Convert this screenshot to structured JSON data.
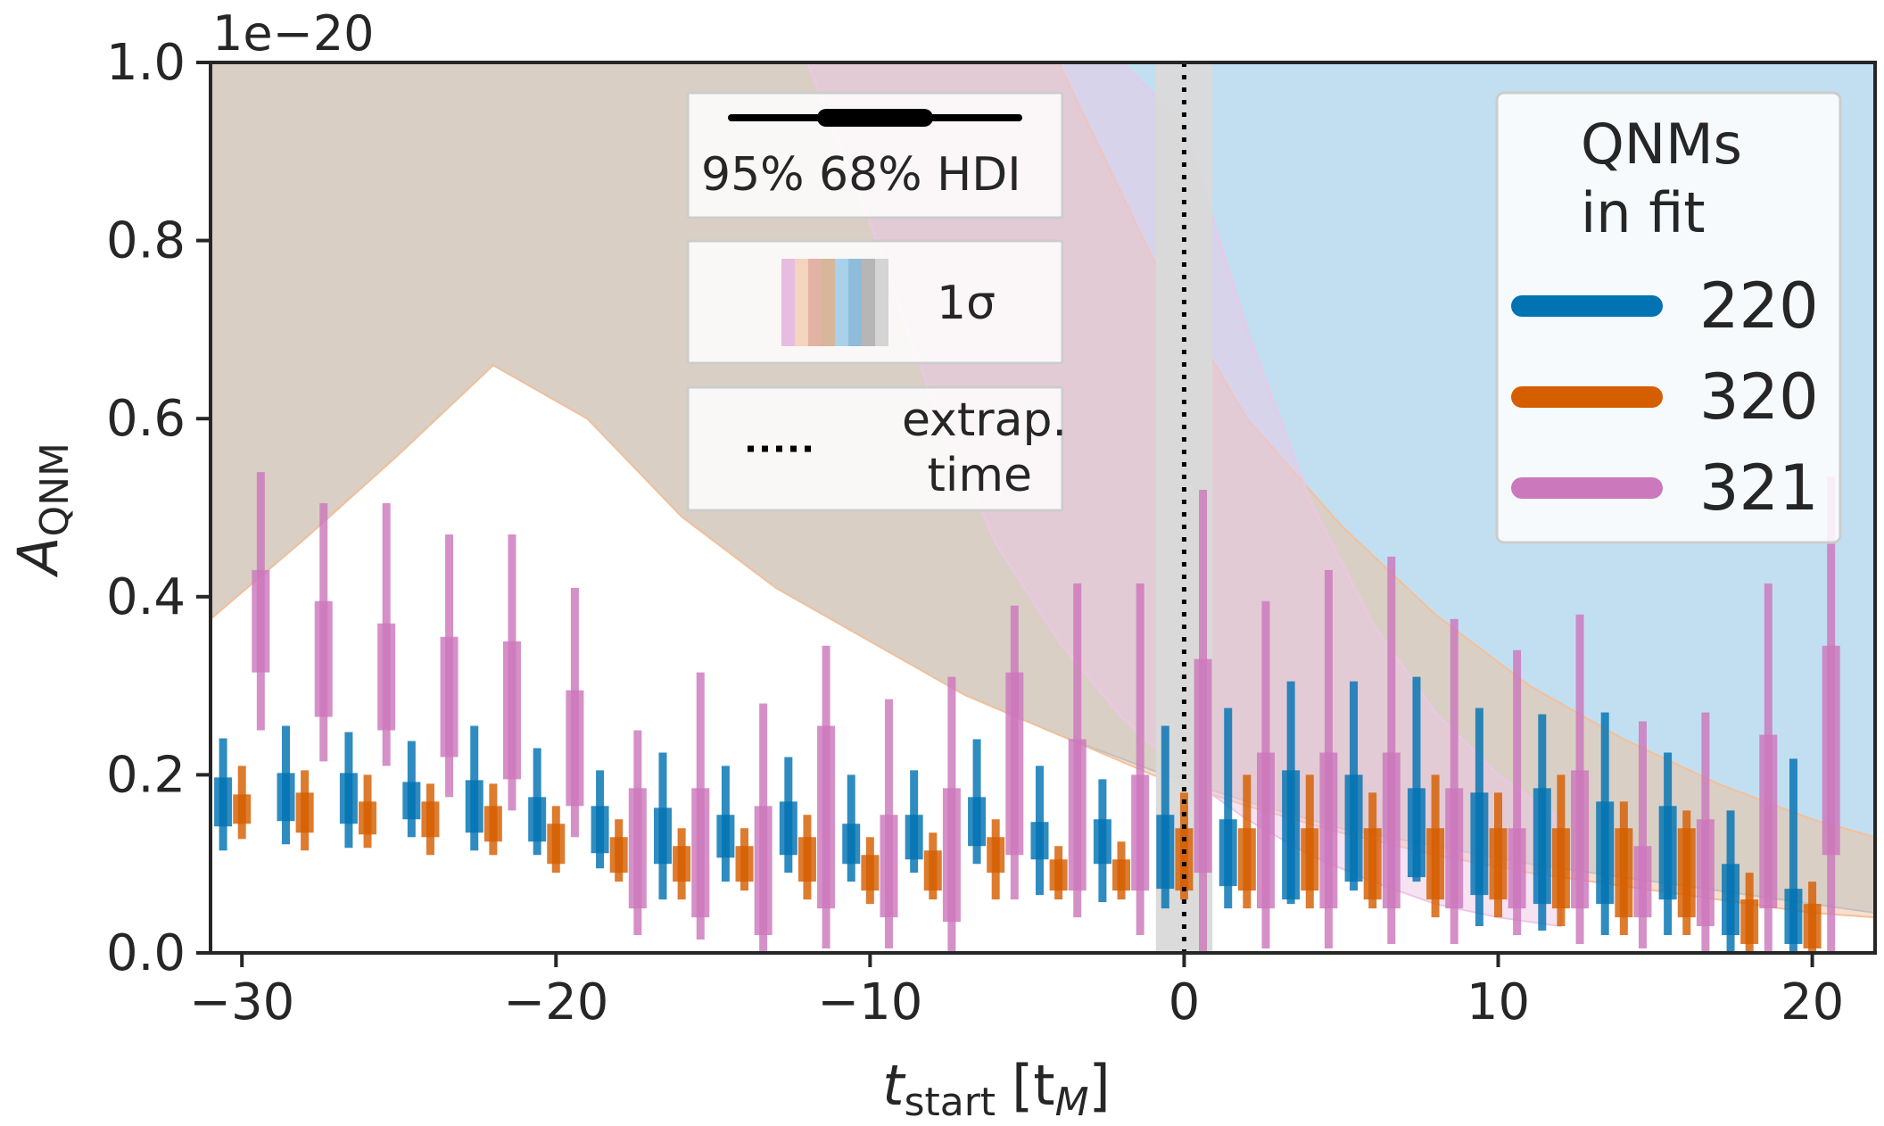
{
  "chart_data": {
    "type": "error-bar",
    "scale_label": "1e−20",
    "xlabel": {
      "main": "t",
      "sub": "start",
      "unit": "[t",
      "unit_sub": "M",
      "unit_close": "]"
    },
    "ylabel": {
      "main": "A",
      "sub": "QNM"
    },
    "xlim": [
      -31,
      22
    ],
    "ylim": [
      0,
      1.0
    ],
    "x_ticks": [
      {
        "value": -30,
        "label": "−30"
      },
      {
        "value": -20,
        "label": "−20"
      },
      {
        "value": -10,
        "label": "−10"
      },
      {
        "value": 0,
        "label": "0"
      },
      {
        "value": 10,
        "label": "10"
      },
      {
        "value": 20,
        "label": "20"
      }
    ],
    "y_ticks": [
      {
        "value": 0.0,
        "label": "0.0"
      },
      {
        "value": 0.2,
        "label": "0.2"
      },
      {
        "value": 0.4,
        "label": "0.4"
      },
      {
        "value": 0.6,
        "label": "0.6"
      },
      {
        "value": 0.8,
        "label": "0.8"
      },
      {
        "value": 1.0,
        "label": "1.0"
      }
    ],
    "extrap_time": 0,
    "extrap_band": [
      -0.9,
      0.9
    ],
    "legend_title": [
      "QNMs",
      "in fit"
    ],
    "legend_position": "top-right",
    "series": [
      {
        "name": "220",
        "color": "#0173b2",
        "band_color": "#8fc4e6",
        "x_offset": -0.6,
        "points": [
          {
            "x": -30,
            "lo95": 0.115,
            "lo68": 0.142,
            "med": 0.175,
            "hi68": 0.197,
            "hi95": 0.241
          },
          {
            "x": -28,
            "lo95": 0.122,
            "lo68": 0.148,
            "med": 0.178,
            "hi68": 0.202,
            "hi95": 0.255
          },
          {
            "x": -26,
            "lo95": 0.118,
            "lo68": 0.145,
            "med": 0.175,
            "hi68": 0.202,
            "hi95": 0.248
          },
          {
            "x": -24,
            "lo95": 0.13,
            "lo68": 0.15,
            "med": 0.17,
            "hi68": 0.192,
            "hi95": 0.238
          },
          {
            "x": -22,
            "lo95": 0.115,
            "lo68": 0.135,
            "med": 0.165,
            "hi68": 0.194,
            "hi95": 0.255
          },
          {
            "x": -20,
            "lo95": 0.11,
            "lo68": 0.125,
            "med": 0.15,
            "hi68": 0.175,
            "hi95": 0.23
          },
          {
            "x": -18,
            "lo95": 0.095,
            "lo68": 0.112,
            "med": 0.14,
            "hi68": 0.165,
            "hi95": 0.205
          },
          {
            "x": -16,
            "lo95": 0.06,
            "lo68": 0.1,
            "med": 0.135,
            "hi68": 0.163,
            "hi95": 0.225
          },
          {
            "x": -14,
            "lo95": 0.08,
            "lo68": 0.107,
            "med": 0.135,
            "hi68": 0.155,
            "hi95": 0.21
          },
          {
            "x": -12,
            "lo95": 0.09,
            "lo68": 0.11,
            "med": 0.14,
            "hi68": 0.17,
            "hi95": 0.22
          },
          {
            "x": -10,
            "lo95": 0.08,
            "lo68": 0.1,
            "med": 0.12,
            "hi68": 0.145,
            "hi95": 0.2
          },
          {
            "x": -8,
            "lo95": 0.09,
            "lo68": 0.105,
            "med": 0.13,
            "hi68": 0.155,
            "hi95": 0.205
          },
          {
            "x": -6,
            "lo95": 0.1,
            "lo68": 0.12,
            "med": 0.15,
            "hi68": 0.175,
            "hi95": 0.24
          },
          {
            "x": -4,
            "lo95": 0.065,
            "lo68": 0.105,
            "med": 0.125,
            "hi68": 0.147,
            "hi95": 0.21
          },
          {
            "x": -2,
            "lo95": 0.057,
            "lo68": 0.1,
            "med": 0.13,
            "hi68": 0.15,
            "hi95": 0.195
          },
          {
            "x": 0,
            "lo95": 0.05,
            "lo68": 0.072,
            "med": 0.12,
            "hi68": 0.155,
            "hi95": 0.255
          },
          {
            "x": 2,
            "lo95": 0.05,
            "lo68": 0.075,
            "med": 0.11,
            "hi68": 0.15,
            "hi95": 0.275
          },
          {
            "x": 4,
            "lo95": 0.055,
            "lo68": 0.06,
            "med": 0.11,
            "hi68": 0.205,
            "hi95": 0.305
          },
          {
            "x": 6,
            "lo95": 0.07,
            "lo68": 0.08,
            "med": 0.15,
            "hi68": 0.2,
            "hi95": 0.305
          },
          {
            "x": 8,
            "lo95": 0.08,
            "lo68": 0.085,
            "med": 0.13,
            "hi68": 0.185,
            "hi95": 0.31
          },
          {
            "x": 10,
            "lo95": 0.03,
            "lo68": 0.065,
            "med": 0.12,
            "hi68": 0.18,
            "hi95": 0.275
          },
          {
            "x": 12,
            "lo95": 0.025,
            "lo68": 0.055,
            "med": 0.1,
            "hi68": 0.185,
            "hi95": 0.268
          },
          {
            "x": 14,
            "lo95": 0.02,
            "lo68": 0.055,
            "med": 0.11,
            "hi68": 0.17,
            "hi95": 0.27
          },
          {
            "x": 16,
            "lo95": 0.02,
            "lo68": 0.06,
            "med": 0.11,
            "hi68": 0.165,
            "hi95": 0.225
          },
          {
            "x": 18,
            "lo95": 0.0,
            "lo68": 0.02,
            "med": 0.05,
            "hi68": 0.1,
            "hi95": 0.16
          },
          {
            "x": 20,
            "lo95": 0.0,
            "lo68": 0.01,
            "med": 0.04,
            "hi68": 0.072,
            "hi95": 0.218
          }
        ],
        "band": {
          "x": [
            -31,
            -28,
            -25,
            -22,
            -19,
            -16,
            -13,
            -10,
            -7,
            -4,
            -1,
            2,
            5,
            8,
            11,
            14,
            17,
            20,
            22
          ],
          "lo": [
            0.375,
            0.465,
            0.56,
            0.66,
            0.6,
            0.49,
            0.41,
            0.35,
            0.29,
            0.245,
            0.205,
            0.17,
            0.14,
            0.12,
            0.1,
            0.085,
            0.07,
            0.055,
            0.045
          ],
          "hi": [
            1.0,
            1.0,
            1.0,
            1.0,
            1.0,
            1.0,
            1.0,
            1.0,
            1.0,
            1.0,
            1.0,
            1.0,
            1.0,
            1.0,
            1.0,
            1.0,
            1.0,
            1.0,
            1.0
          ]
        }
      },
      {
        "name": "320",
        "color": "#d55e00",
        "band_color": "#f2c09a",
        "x_offset": 0.0,
        "points": [
          {
            "x": -30,
            "lo95": 0.128,
            "lo68": 0.145,
            "med": 0.16,
            "hi68": 0.178,
            "hi95": 0.21
          },
          {
            "x": -28,
            "lo95": 0.115,
            "lo68": 0.135,
            "med": 0.155,
            "hi68": 0.18,
            "hi95": 0.205
          },
          {
            "x": -26,
            "lo95": 0.118,
            "lo68": 0.133,
            "med": 0.15,
            "hi68": 0.17,
            "hi95": 0.2
          },
          {
            "x": -24,
            "lo95": 0.11,
            "lo68": 0.13,
            "med": 0.15,
            "hi68": 0.17,
            "hi95": 0.19
          },
          {
            "x": -22,
            "lo95": 0.11,
            "lo68": 0.125,
            "med": 0.145,
            "hi68": 0.165,
            "hi95": 0.19
          },
          {
            "x": -20,
            "lo95": 0.09,
            "lo68": 0.1,
            "med": 0.12,
            "hi68": 0.145,
            "hi95": 0.165
          },
          {
            "x": -18,
            "lo95": 0.08,
            "lo68": 0.09,
            "med": 0.11,
            "hi68": 0.13,
            "hi95": 0.15
          },
          {
            "x": -16,
            "lo95": 0.06,
            "lo68": 0.08,
            "med": 0.1,
            "hi68": 0.12,
            "hi95": 0.14
          },
          {
            "x": -14,
            "lo95": 0.07,
            "lo68": 0.08,
            "med": 0.1,
            "hi68": 0.12,
            "hi95": 0.14
          },
          {
            "x": -12,
            "lo95": 0.06,
            "lo68": 0.08,
            "med": 0.105,
            "hi68": 0.13,
            "hi95": 0.155
          },
          {
            "x": -10,
            "lo95": 0.055,
            "lo68": 0.07,
            "med": 0.09,
            "hi68": 0.11,
            "hi95": 0.13
          },
          {
            "x": -8,
            "lo95": 0.06,
            "lo68": 0.07,
            "med": 0.095,
            "hi68": 0.115,
            "hi95": 0.135
          },
          {
            "x": -6,
            "lo95": 0.06,
            "lo68": 0.09,
            "med": 0.11,
            "hi68": 0.13,
            "hi95": 0.15
          },
          {
            "x": -4,
            "lo95": 0.06,
            "lo68": 0.07,
            "med": 0.09,
            "hi68": 0.105,
            "hi95": 0.12
          },
          {
            "x": -2,
            "lo95": 0.06,
            "lo68": 0.07,
            "med": 0.09,
            "hi68": 0.105,
            "hi95": 0.125
          },
          {
            "x": 0,
            "lo95": 0.06,
            "lo68": 0.07,
            "med": 0.1,
            "hi68": 0.14,
            "hi95": 0.18
          },
          {
            "x": 2,
            "lo95": 0.05,
            "lo68": 0.07,
            "med": 0.1,
            "hi68": 0.14,
            "hi95": 0.2
          },
          {
            "x": 4,
            "lo95": 0.05,
            "lo68": 0.07,
            "med": 0.1,
            "hi68": 0.14,
            "hi95": 0.2
          },
          {
            "x": 6,
            "lo95": 0.05,
            "lo68": 0.06,
            "med": 0.1,
            "hi68": 0.14,
            "hi95": 0.18
          },
          {
            "x": 8,
            "lo95": 0.04,
            "lo68": 0.06,
            "med": 0.1,
            "hi68": 0.14,
            "hi95": 0.2
          },
          {
            "x": 10,
            "lo95": 0.04,
            "lo68": 0.06,
            "med": 0.1,
            "hi68": 0.14,
            "hi95": 0.18
          },
          {
            "x": 12,
            "lo95": 0.03,
            "lo68": 0.05,
            "med": 0.1,
            "hi68": 0.14,
            "hi95": 0.2
          },
          {
            "x": 14,
            "lo95": 0.02,
            "lo68": 0.04,
            "med": 0.09,
            "hi68": 0.14,
            "hi95": 0.17
          },
          {
            "x": 16,
            "lo95": 0.02,
            "lo68": 0.04,
            "med": 0.09,
            "hi68": 0.14,
            "hi95": 0.16
          },
          {
            "x": 18,
            "lo95": 0.0,
            "lo68": 0.01,
            "med": 0.03,
            "hi68": 0.06,
            "hi95": 0.09
          },
          {
            "x": 20,
            "lo95": 0.0,
            "lo68": 0.005,
            "med": 0.03,
            "hi68": 0.055,
            "hi95": 0.08
          }
        ],
        "band": {
          "x": [
            -31,
            -28,
            -25,
            -22,
            -19,
            -16,
            -13,
            -10,
            -7,
            -4,
            -1,
            2,
            5,
            8,
            11,
            14,
            17,
            20,
            22
          ],
          "lo": [
            0.375,
            0.465,
            0.56,
            0.66,
            0.6,
            0.49,
            0.41,
            0.35,
            0.29,
            0.245,
            0.2,
            0.165,
            0.135,
            0.11,
            0.09,
            0.075,
            0.06,
            0.045,
            0.04
          ],
          "hi": [
            1.0,
            1.0,
            1.0,
            1.0,
            1.0,
            1.0,
            1.0,
            1.0,
            1.0,
            1.0,
            0.78,
            0.6,
            0.48,
            0.38,
            0.3,
            0.24,
            0.19,
            0.15,
            0.13
          ]
        }
      },
      {
        "name": "321",
        "color": "#cc78bc",
        "band_color": "#ecc7e6",
        "x_offset": 0.6,
        "points": [
          {
            "x": -30,
            "lo95": 0.25,
            "lo68": 0.315,
            "med": 0.37,
            "hi68": 0.43,
            "hi95": 0.54
          },
          {
            "x": -28,
            "lo95": 0.215,
            "lo68": 0.265,
            "med": 0.33,
            "hi68": 0.395,
            "hi95": 0.505
          },
          {
            "x": -26,
            "lo95": 0.21,
            "lo68": 0.25,
            "med": 0.31,
            "hi68": 0.37,
            "hi95": 0.505
          },
          {
            "x": -24,
            "lo95": 0.175,
            "lo68": 0.22,
            "med": 0.28,
            "hi68": 0.355,
            "hi95": 0.47
          },
          {
            "x": -22,
            "lo95": 0.16,
            "lo68": 0.195,
            "med": 0.27,
            "hi68": 0.35,
            "hi95": 0.47
          },
          {
            "x": -20,
            "lo95": 0.13,
            "lo68": 0.165,
            "med": 0.23,
            "hi68": 0.295,
            "hi95": 0.41
          },
          {
            "x": -18,
            "lo95": 0.02,
            "lo68": 0.05,
            "med": 0.11,
            "hi68": 0.185,
            "hi95": 0.25
          },
          {
            "x": -16,
            "lo95": 0.015,
            "lo68": 0.04,
            "med": 0.11,
            "hi68": 0.185,
            "hi95": 0.315
          },
          {
            "x": -14,
            "lo95": 0.0,
            "lo68": 0.02,
            "med": 0.08,
            "hi68": 0.165,
            "hi95": 0.28
          },
          {
            "x": -12,
            "lo95": 0.005,
            "lo68": 0.05,
            "med": 0.14,
            "hi68": 0.255,
            "hi95": 0.345
          },
          {
            "x": -10,
            "lo95": 0.005,
            "lo68": 0.04,
            "med": 0.09,
            "hi68": 0.155,
            "hi95": 0.285
          },
          {
            "x": -8,
            "lo95": 0.0,
            "lo68": 0.035,
            "med": 0.12,
            "hi68": 0.185,
            "hi95": 0.31
          },
          {
            "x": -6,
            "lo95": 0.06,
            "lo68": 0.11,
            "med": 0.2,
            "hi68": 0.315,
            "hi95": 0.39
          },
          {
            "x": -4,
            "lo95": 0.04,
            "lo68": 0.07,
            "med": 0.14,
            "hi68": 0.24,
            "hi95": 0.415
          },
          {
            "x": -2,
            "lo95": 0.02,
            "lo68": 0.07,
            "med": 0.14,
            "hi68": 0.2,
            "hi95": 0.415
          },
          {
            "x": 0,
            "lo95": 0.0,
            "lo68": 0.09,
            "med": 0.2,
            "hi68": 0.33,
            "hi95": 0.52
          },
          {
            "x": 2,
            "lo95": 0.005,
            "lo68": 0.05,
            "med": 0.14,
            "hi68": 0.225,
            "hi95": 0.395
          },
          {
            "x": 4,
            "lo95": 0.005,
            "lo68": 0.05,
            "med": 0.15,
            "hi68": 0.225,
            "hi95": 0.43
          },
          {
            "x": 6,
            "lo95": 0.01,
            "lo68": 0.05,
            "med": 0.14,
            "hi68": 0.225,
            "hi95": 0.445
          },
          {
            "x": 8,
            "lo95": 0.01,
            "lo68": 0.05,
            "med": 0.12,
            "hi68": 0.185,
            "hi95": 0.375
          },
          {
            "x": 10,
            "lo95": 0.02,
            "lo68": 0.05,
            "med": 0.1,
            "hi68": 0.14,
            "hi95": 0.34
          },
          {
            "x": 12,
            "lo95": 0.01,
            "lo68": 0.05,
            "med": 0.13,
            "hi68": 0.205,
            "hi95": 0.38
          },
          {
            "x": 14,
            "lo95": 0.005,
            "lo68": 0.04,
            "med": 0.09,
            "hi68": 0.12,
            "hi95": 0.26
          },
          {
            "x": 16,
            "lo95": 0.0,
            "lo68": 0.03,
            "med": 0.09,
            "hi68": 0.15,
            "hi95": 0.27
          },
          {
            "x": 18,
            "lo95": 0.0,
            "lo68": 0.05,
            "med": 0.14,
            "hi68": 0.245,
            "hi95": 0.415
          },
          {
            "x": 20,
            "lo95": 0.0,
            "lo68": 0.11,
            "med": 0.24,
            "hi68": 0.345,
            "hi95": 0.535
          }
        ],
        "band": {
          "x": [
            -12,
            -10,
            -8,
            -6,
            -4,
            -2,
            0,
            2,
            4,
            6,
            8,
            10,
            12
          ],
          "lo": [
            1.0,
            0.82,
            0.62,
            0.46,
            0.35,
            0.265,
            0.2,
            0.15,
            0.11,
            0.08,
            0.055,
            0.04,
            0.03
          ],
          "hi": [
            1.0,
            1.0,
            1.0,
            1.0,
            1.0,
            1.0,
            0.93,
            0.7,
            0.51,
            0.37,
            0.27,
            0.2,
            0.15
          ]
        },
        "band_upper_only_from": -16
      }
    ]
  },
  "legends": {
    "hdi": {
      "label_95": "95%",
      "label_68": "68% HDI"
    },
    "sigma": {
      "label": "1σ"
    },
    "extrap": {
      "line1": "extrap.",
      "line2": "time"
    }
  }
}
